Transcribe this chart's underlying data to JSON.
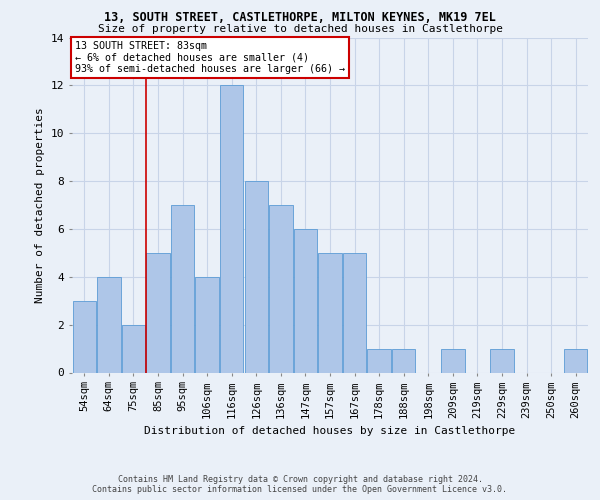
{
  "title_line1": "13, SOUTH STREET, CASTLETHORPE, MILTON KEYNES, MK19 7EL",
  "title_line2": "Size of property relative to detached houses in Castlethorpe",
  "xlabel": "Distribution of detached houses by size in Castlethorpe",
  "ylabel": "Number of detached properties",
  "footer_line1": "Contains HM Land Registry data © Crown copyright and database right 2024.",
  "footer_line2": "Contains public sector information licensed under the Open Government Licence v3.0.",
  "categories": [
    "54sqm",
    "64sqm",
    "75sqm",
    "85sqm",
    "95sqm",
    "106sqm",
    "116sqm",
    "126sqm",
    "136sqm",
    "147sqm",
    "157sqm",
    "167sqm",
    "178sqm",
    "188sqm",
    "198sqm",
    "209sqm",
    "219sqm",
    "229sqm",
    "239sqm",
    "250sqm",
    "260sqm"
  ],
  "values": [
    3,
    4,
    2,
    5,
    7,
    4,
    12,
    8,
    7,
    6,
    5,
    5,
    1,
    1,
    0,
    1,
    0,
    1,
    0,
    0,
    1
  ],
  "bar_color": "#aec6e8",
  "bar_edgecolor": "#5b9bd5",
  "grid_color": "#c8d4e8",
  "background_color": "#eaf0f8",
  "annotation_text": "13 SOUTH STREET: 83sqm\n← 6% of detached houses are smaller (4)\n93% of semi-detached houses are larger (66) →",
  "annotation_box_facecolor": "#ffffff",
  "annotation_box_edgecolor": "#cc0000",
  "red_line_x": 2.5,
  "ylim": [
    0,
    14
  ],
  "yticks": [
    0,
    2,
    4,
    6,
    8,
    10,
    12,
    14
  ],
  "title1_fontsize": 8.5,
  "title2_fontsize": 8.0,
  "ylabel_fontsize": 8.0,
  "xlabel_fontsize": 8.0,
  "tick_fontsize": 7.5,
  "footer_fontsize": 6.0
}
